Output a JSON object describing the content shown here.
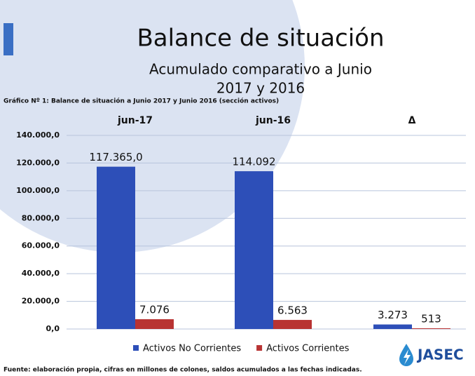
{
  "chart_data": {
    "type": "bar",
    "title": "Balance de situación",
    "subtitle": [
      "Acumulado comparativo a Junio",
      "2017 y 2016"
    ],
    "caption": "Gráfico Nº 1: Balance de situación a Junio 2017 y Junio 2016 (sección activos)",
    "categories": [
      "jun-17",
      "jun-16",
      "Δ"
    ],
    "series": [
      {
        "name": "Activos No Corrientes",
        "color": "#2d4fb8",
        "values": [
          117365,
          114092,
          3273
        ],
        "value_labels": [
          "117.365,0",
          "114.092",
          "3.273"
        ]
      },
      {
        "name": "Activos Corrientes",
        "color": "#b83333",
        "values": [
          7076,
          6563,
          513
        ],
        "value_labels": [
          "7.076",
          "6.563",
          "513"
        ]
      }
    ],
    "ylim": [
      0,
      140000
    ],
    "yticks": [
      {
        "value": 0,
        "label": "0,0"
      },
      {
        "value": 20000,
        "label": "20.000,0"
      },
      {
        "value": 40000,
        "label": "40.000,0"
      },
      {
        "value": 60000,
        "label": "60.000,0"
      },
      {
        "value": 80000,
        "label": "80.000,0"
      },
      {
        "value": 100000,
        "label": "100.000,0"
      },
      {
        "value": 120000,
        "label": "120.000,0"
      },
      {
        "value": 140000,
        "label": "140.000,0"
      }
    ],
    "grid": true,
    "legend": "bottom",
    "source": "Fuente: elaboración propia, cifras en millones de colones, saldos acumulados a las fechas indicadas.",
    "logo": "JASEC"
  }
}
